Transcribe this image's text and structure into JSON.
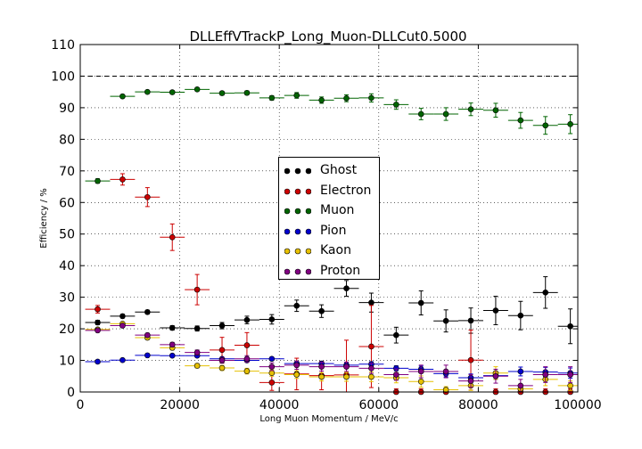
{
  "chart_data": {
    "type": "scatter",
    "title": "DLLEffVTrackP_Long_Muon-DLLCut0.5000",
    "xlabel": "Long Muon Momentum / MeV/c",
    "ylabel": "Efficiency / %",
    "xlim": [
      0,
      100000
    ],
    "ylim": [
      0,
      110
    ],
    "xticks": [
      "0",
      "20000",
      "40000",
      "60000",
      "80000",
      "100000"
    ],
    "yticks": [
      "0",
      "10",
      "20",
      "30",
      "40",
      "50",
      "60",
      "70",
      "80",
      "90",
      "100",
      "110"
    ],
    "grid": true,
    "reference_line_y": 100,
    "legend_position": "center",
    "bin_edges": [
      1000,
      6000,
      11000,
      16000,
      21000,
      26000,
      31000,
      36000,
      41000,
      46000,
      51000,
      56000,
      61000,
      66000,
      71000,
      76000,
      81000,
      86000,
      91000,
      96000,
      101000
    ],
    "x": [
      3500,
      8500,
      13500,
      18500,
      23500,
      28500,
      33500,
      38500,
      43500,
      48500,
      53500,
      58500,
      63500,
      68500,
      73500,
      78500,
      83500,
      88500,
      93500,
      98500
    ],
    "series": [
      {
        "name": "Ghost",
        "color": "#000000",
        "values": [
          22.0,
          24.0,
          25.3,
          20.3,
          20.1,
          21.0,
          22.8,
          23.0,
          27.3,
          25.6,
          32.8,
          28.3,
          18.0,
          28.2,
          22.5,
          22.6,
          25.8,
          24.2,
          31.5,
          20.8
        ],
        "errors": [
          0.7,
          0.6,
          0.6,
          0.7,
          0.8,
          1.0,
          1.2,
          1.5,
          1.8,
          2.0,
          2.5,
          3.0,
          2.5,
          3.8,
          3.5,
          4.0,
          4.5,
          4.5,
          5.0,
          5.5
        ]
      },
      {
        "name": "Electron",
        "color": "#cc0000",
        "values": [
          26.2,
          67.3,
          61.7,
          49.0,
          32.4,
          13.3,
          14.8,
          3.0,
          5.7,
          5.2,
          5.4,
          14.4,
          0.0,
          0.0,
          0.0,
          10.1,
          0.0,
          0.0,
          0.0,
          0.0
        ],
        "errors": [
          1.2,
          1.8,
          3.0,
          4.2,
          4.8,
          4.0,
          4.0,
          2.5,
          5.0,
          4.5,
          11.0,
          13.0,
          1.0,
          1.0,
          1.0,
          9.5,
          1.0,
          1.0,
          1.0,
          1.0
        ]
      },
      {
        "name": "Muon",
        "color": "#006400",
        "values": [
          66.8,
          93.6,
          95.0,
          94.9,
          95.8,
          94.6,
          94.7,
          93.1,
          93.9,
          92.4,
          93.0,
          93.1,
          91.0,
          88.0,
          88.0,
          89.5,
          89.2,
          86.0,
          84.4,
          84.8
        ],
        "errors": [
          0.7,
          0.5,
          0.5,
          0.5,
          0.5,
          0.6,
          0.6,
          0.7,
          0.9,
          1.0,
          1.1,
          1.3,
          1.5,
          1.8,
          2.0,
          2.0,
          2.2,
          2.5,
          2.8,
          3.0
        ]
      },
      {
        "name": "Pion",
        "color": "#0000cc",
        "values": [
          9.6,
          10.1,
          11.6,
          11.5,
          11.5,
          10.5,
          10.0,
          10.5,
          9.0,
          9.0,
          8.5,
          8.8,
          7.5,
          7.2,
          5.8,
          4.5,
          5.2,
          6.5,
          6.3,
          6.0
        ],
        "errors": [
          0.3,
          0.3,
          0.3,
          0.3,
          0.4,
          0.4,
          0.4,
          0.5,
          0.5,
          0.6,
          0.7,
          0.8,
          0.8,
          1.0,
          1.0,
          1.2,
          1.2,
          1.4,
          1.5,
          1.6
        ]
      },
      {
        "name": "Kaon",
        "color": "#e6c000",
        "values": [
          19.8,
          21.6,
          17.2,
          14.0,
          8.3,
          7.6,
          6.6,
          6.0,
          5.5,
          4.8,
          4.8,
          4.8,
          4.5,
          3.3,
          0.7,
          2.0,
          6.0,
          1.0,
          4.0,
          2.0
        ],
        "errors": [
          0.5,
          0.5,
          0.6,
          0.7,
          0.7,
          0.8,
          0.9,
          1.0,
          1.2,
          1.3,
          1.4,
          1.5,
          1.6,
          1.8,
          1.0,
          1.5,
          2.0,
          1.2,
          2.0,
          1.5
        ]
      },
      {
        "name": "Proton",
        "color": "#800080",
        "values": [
          19.5,
          21.0,
          18.0,
          15.0,
          12.5,
          10.0,
          10.5,
          8.0,
          8.5,
          8.0,
          8.0,
          7.5,
          5.5,
          6.5,
          6.5,
          3.5,
          5.0,
          2.0,
          5.5,
          5.5
        ],
        "errors": [
          0.5,
          0.5,
          0.6,
          0.7,
          0.8,
          0.9,
          1.0,
          1.2,
          1.3,
          1.4,
          1.5,
          1.6,
          1.8,
          2.0,
          2.0,
          2.0,
          2.2,
          2.0,
          2.5,
          2.5
        ]
      }
    ]
  }
}
